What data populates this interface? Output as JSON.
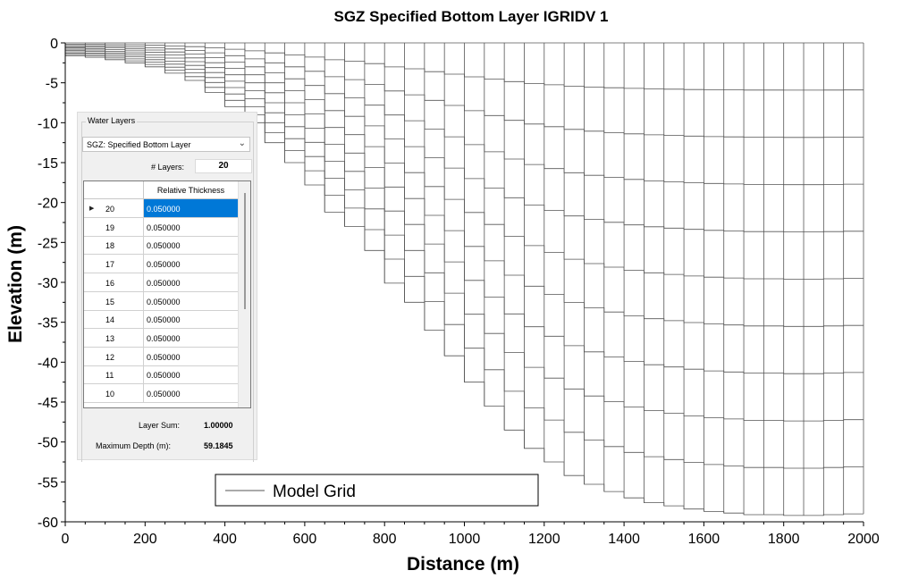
{
  "chart_data": {
    "type": "line",
    "title": "SGZ Specified Bottom Layer IGRIDV 1",
    "xlabel": "Distance (m)",
    "ylabel": "Elevation (m)",
    "xlim": [
      0,
      2000
    ],
    "ylim": [
      -60,
      0
    ],
    "xticks": [
      0,
      200,
      400,
      600,
      800,
      1000,
      1200,
      1400,
      1600,
      1800,
      2000
    ],
    "yticks": [
      0,
      -5,
      -10,
      -15,
      -20,
      -25,
      -30,
      -35,
      -40,
      -45,
      -50,
      -55,
      -60
    ],
    "grid": false,
    "legend": {
      "position": "bottom-center",
      "entries": [
        "Model Grid"
      ]
    },
    "series": [
      {
        "name": "Model Grid",
        "color": "#404040",
        "num_layers": 20,
        "surface_elevation": 0,
        "x": [
          0,
          50,
          100,
          150,
          200,
          250,
          300,
          350,
          400,
          450,
          500,
          550,
          600,
          650,
          700,
          750,
          800,
          850,
          900,
          950,
          1000,
          1050,
          1100,
          1150,
          1200,
          1250,
          1300,
          1350,
          1400,
          1450,
          1500,
          1550,
          1600,
          1650,
          1700,
          1750,
          1800,
          1850,
          1900,
          1950
        ],
        "bottom_elevation": [
          -1.6,
          -1.8,
          -2.1,
          -2.5,
          -3.0,
          -3.8,
          -4.7,
          -6.2,
          -8.0,
          -10.0,
          -12.5,
          -15.0,
          -17.8,
          -21.2,
          -23.0,
          -26.0,
          -30.1,
          -32.5,
          -36.0,
          -39.2,
          -42.5,
          -45.5,
          -48.5,
          -50.8,
          -52.5,
          -54.2,
          -55.3,
          -56.2,
          -57.0,
          -57.6,
          -58.0,
          -58.4,
          -58.7,
          -58.9,
          -59.1,
          -59.1,
          -59.2,
          -59.2,
          -59.1,
          -59.0
        ]
      }
    ]
  },
  "panel": {
    "group_title": "Water Layers",
    "dropdown_value": "SGZ: Specified Bottom Layer",
    "layers_label": "# Layers:",
    "layers_value": "20",
    "column_header": "Relative Thickness",
    "rows": [
      {
        "num": "20",
        "value": "0.050000"
      },
      {
        "num": "19",
        "value": "0.050000"
      },
      {
        "num": "18",
        "value": "0.050000"
      },
      {
        "num": "17",
        "value": "0.050000"
      },
      {
        "num": "16",
        "value": "0.050000"
      },
      {
        "num": "15",
        "value": "0.050000"
      },
      {
        "num": "14",
        "value": "0.050000"
      },
      {
        "num": "13",
        "value": "0.050000"
      },
      {
        "num": "12",
        "value": "0.050000"
      },
      {
        "num": "11",
        "value": "0.050000"
      },
      {
        "num": "10",
        "value": "0.050000"
      }
    ],
    "selected_row_index": 0,
    "layer_sum_label": "Layer Sum:",
    "layer_sum_value": "1.00000",
    "max_depth_label": "Maximum Depth (m):",
    "max_depth_value": "59.1845"
  }
}
